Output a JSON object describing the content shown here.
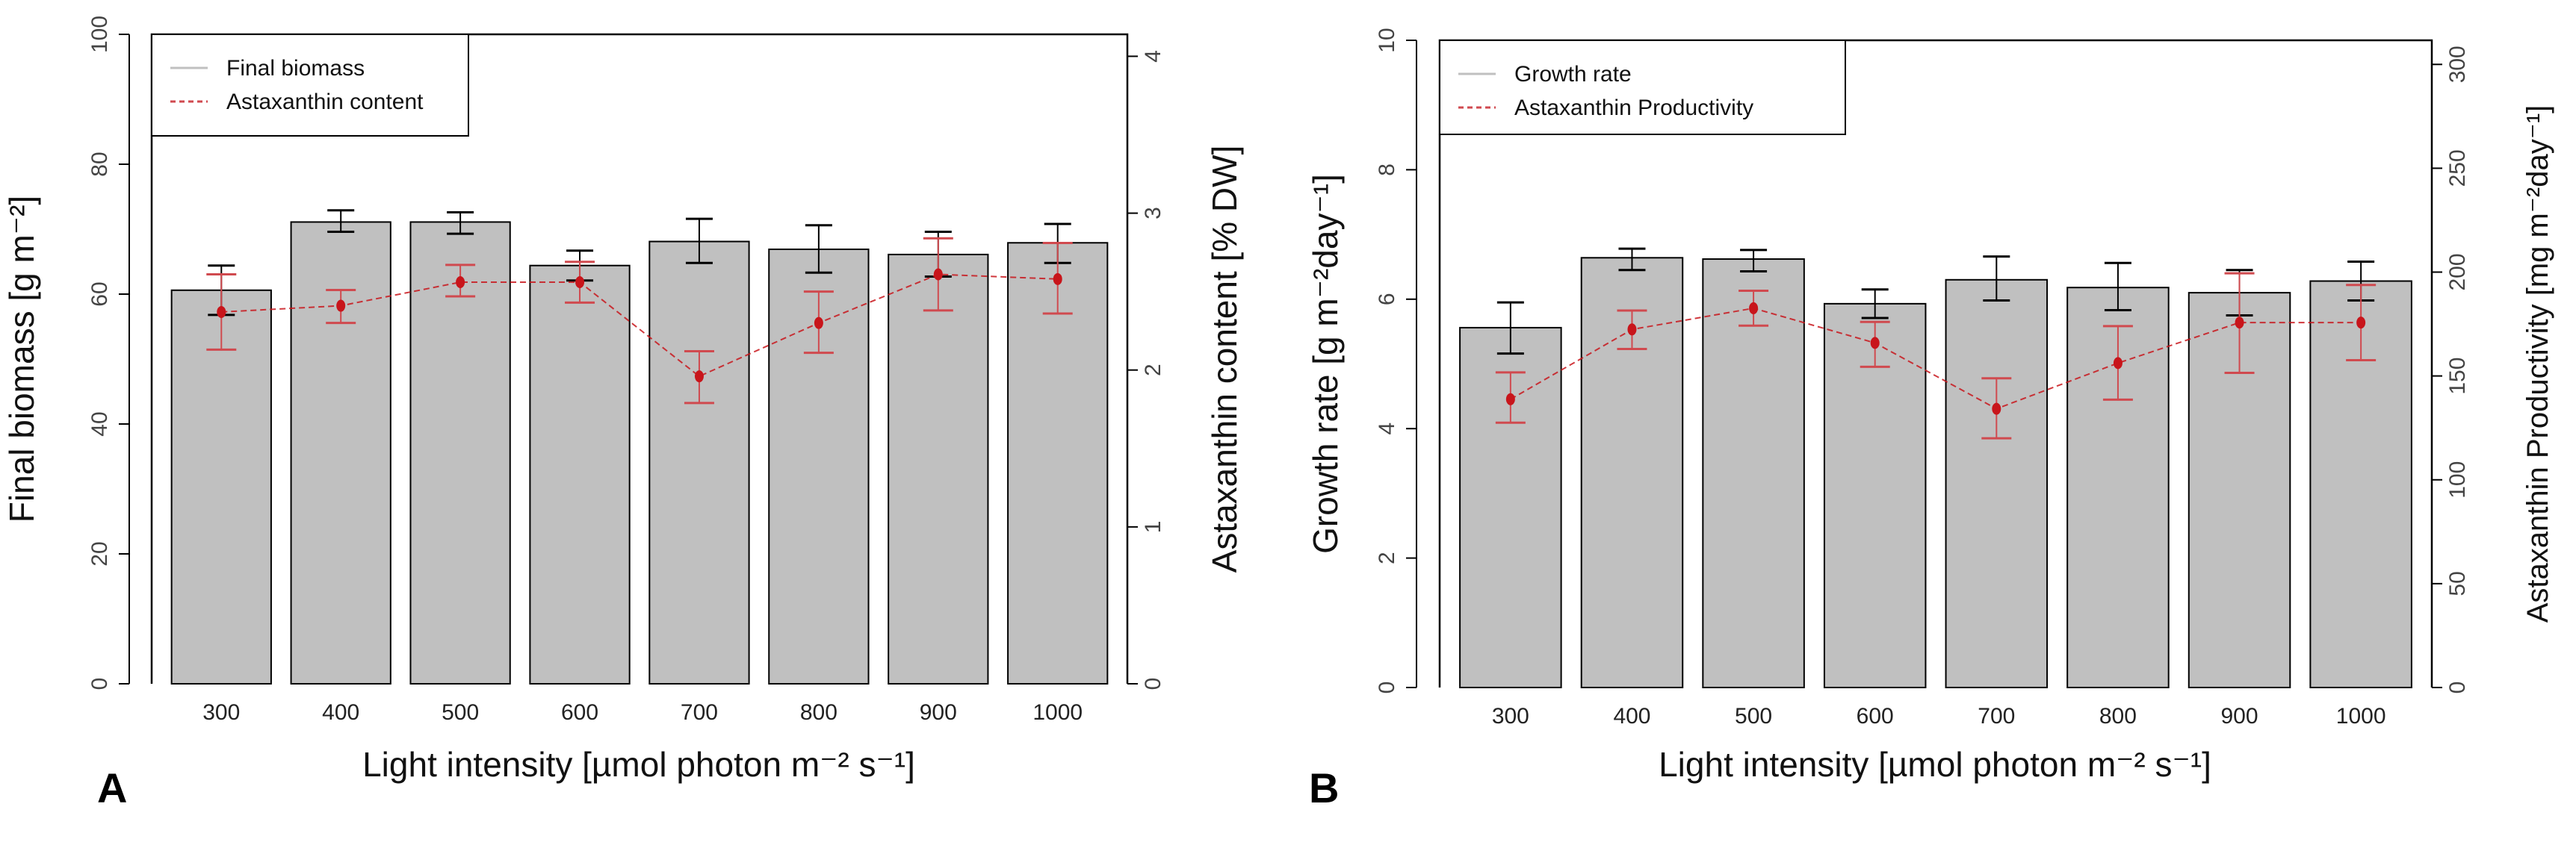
{
  "chart_data": [
    {
      "panel_label": "A",
      "type": "bar",
      "categories": [
        "300",
        "400",
        "500",
        "600",
        "700",
        "800",
        "900",
        "1000"
      ],
      "xlabel": "Light intensity [µmol photon m⁻² s⁻¹]",
      "ylabel": "Final biomass [g m⁻²]",
      "ylabel_right": "Astaxanthin content [% DW]",
      "ylim": [
        0,
        100
      ],
      "yticks": [
        0,
        20,
        40,
        60,
        80,
        100
      ],
      "ylim_right": [
        0,
        4.14
      ],
      "yticks_right": [
        0,
        1,
        2,
        3,
        4
      ],
      "legend": {
        "position": "top-left",
        "entries": [
          "Final biomass",
          "Astaxanthin content"
        ]
      },
      "series": [
        {
          "name": "Final biomass",
          "kind": "bar",
          "axis": "left",
          "color": "#c0c0c0",
          "values": [
            60.6,
            71.1,
            71.1,
            64.4,
            68.1,
            66.9,
            66.1,
            67.9
          ],
          "err_high": [
            64.4,
            72.9,
            72.6,
            66.7,
            71.6,
            70.6,
            69.6,
            70.8
          ],
          "err_low": [
            56.8,
            69.6,
            69.3,
            62.1,
            64.8,
            63.3,
            62.7,
            64.8
          ]
        },
        {
          "name": "Astaxanthin content",
          "kind": "line",
          "axis": "right",
          "color": "#c8151b",
          "values": [
            2.37,
            2.41,
            2.56,
            2.56,
            1.96,
            2.3,
            2.61,
            2.58
          ],
          "err_high": [
            2.61,
            2.51,
            2.67,
            2.69,
            2.12,
            2.5,
            2.84,
            2.81
          ],
          "err_low": [
            2.13,
            2.3,
            2.47,
            2.43,
            1.79,
            2.11,
            2.38,
            2.36
          ]
        }
      ]
    },
    {
      "panel_label": "B",
      "type": "bar",
      "categories": [
        "300",
        "400",
        "500",
        "600",
        "700",
        "800",
        "900",
        "1000"
      ],
      "xlabel": "Light intensity [µmol photon m⁻² s⁻¹]",
      "ylabel": "Growth rate [g m⁻²day⁻¹]",
      "ylabel_right": "Astaxanthin Productivity [mg m⁻²day⁻¹]",
      "ylim": [
        0,
        10
      ],
      "yticks": [
        0,
        2,
        4,
        6,
        8,
        10
      ],
      "ylim_right": [
        0,
        311.6
      ],
      "yticks_right": [
        0,
        50,
        100,
        150,
        200,
        250,
        300
      ],
      "legend": {
        "position": "top-left",
        "entries": [
          "Growth rate",
          "Astaxanthin Productivity"
        ]
      },
      "series": [
        {
          "name": "Growth rate",
          "kind": "bar",
          "axis": "left",
          "color": "#c0c0c0",
          "values": [
            5.56,
            6.64,
            6.62,
            5.93,
            6.3,
            6.18,
            6.1,
            6.28
          ],
          "err_high": [
            5.95,
            6.78,
            6.76,
            6.15,
            6.66,
            6.56,
            6.45,
            6.58
          ],
          "err_low": [
            5.16,
            6.45,
            6.43,
            5.71,
            5.98,
            5.83,
            5.75,
            5.98
          ]
        },
        {
          "name": "Astaxanthin Productivity",
          "kind": "line",
          "axis": "right",
          "color": "#c8151b",
          "values": [
            138.8,
            172.4,
            182.6,
            165.9,
            134.2,
            156.2,
            175.7,
            175.7
          ],
          "err_high": [
            151.7,
            181.5,
            191.0,
            176.0,
            148.9,
            174.0,
            199.4,
            193.8
          ],
          "err_low": [
            127.5,
            163.0,
            174.2,
            154.4,
            120.0,
            138.6,
            151.5,
            157.6
          ]
        }
      ]
    }
  ]
}
